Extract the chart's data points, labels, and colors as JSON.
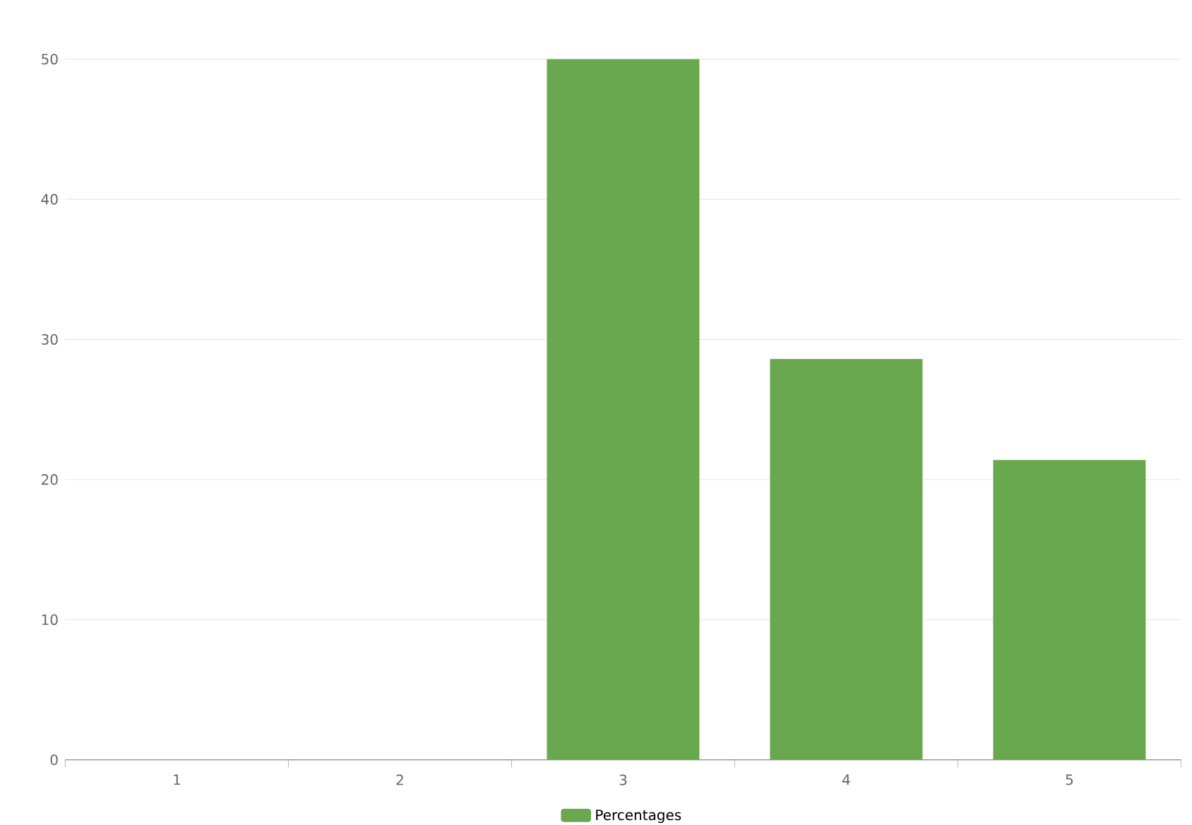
{
  "chart_data": {
    "type": "bar",
    "categories": [
      "1",
      "2",
      "3",
      "4",
      "5"
    ],
    "series": [
      {
        "name": "Percentages",
        "color": "#6aa84f",
        "values": [
          0,
          0,
          50,
          28.6,
          21.4
        ]
      }
    ],
    "ylim": [
      0,
      50
    ],
    "yticks": [
      0,
      10,
      20,
      30,
      40,
      50
    ],
    "grid": "y",
    "legend": "bottom"
  }
}
